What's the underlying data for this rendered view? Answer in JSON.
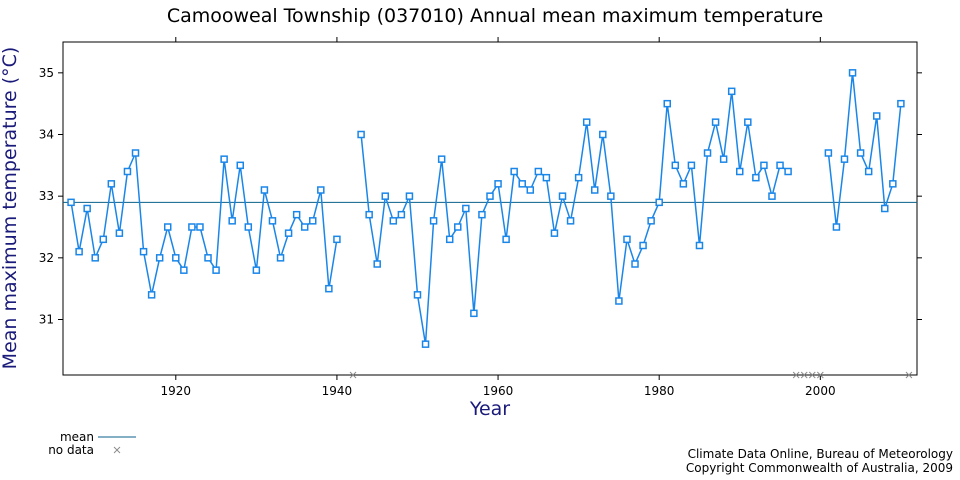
{
  "chart_data": {
    "type": "line",
    "title": "Camooweal Township (037010) Annual mean maximum temperature",
    "xlabel": "Year",
    "ylabel": "Mean maximum temperature (°C)",
    "xlim": [
      1906,
      2009
    ],
    "ylim": [
      30.1,
      35.5
    ],
    "x_ticks": [
      1920,
      1940,
      1960,
      1980,
      2000
    ],
    "y_ticks": [
      31,
      32,
      33,
      34,
      35
    ],
    "grid": false,
    "mean": 32.9,
    "series": [
      {
        "values": [
          [
            1907,
            32.9
          ],
          [
            1908,
            32.1
          ],
          [
            1909,
            32.8
          ],
          [
            1910,
            32.0
          ],
          [
            1911,
            32.3
          ],
          [
            1912,
            33.2
          ],
          [
            1913,
            32.4
          ],
          [
            1914,
            33.4
          ],
          [
            1915,
            33.7
          ],
          [
            1916,
            32.1
          ],
          [
            1917,
            31.4
          ],
          [
            1918,
            32.0
          ],
          [
            1919,
            32.5
          ],
          [
            1920,
            32.0
          ],
          [
            1921,
            31.8
          ],
          [
            1922,
            32.5
          ],
          [
            1923,
            32.5
          ],
          [
            1924,
            32.0
          ],
          [
            1925,
            31.8
          ],
          [
            1926,
            33.6
          ],
          [
            1927,
            32.6
          ],
          [
            1928,
            33.5
          ],
          [
            1929,
            32.5
          ],
          [
            1930,
            31.8
          ],
          [
            1931,
            33.1
          ],
          [
            1932,
            32.6
          ],
          [
            1933,
            32.0
          ],
          [
            1934,
            32.4
          ],
          [
            1935,
            32.7
          ],
          [
            1936,
            32.5
          ],
          [
            1937,
            32.6
          ],
          [
            1938,
            33.1
          ],
          [
            1939,
            31.5
          ],
          [
            1940,
            32.3
          ],
          [
            null,
            null
          ],
          [
            1943,
            34.0
          ],
          [
            1944,
            32.7
          ],
          [
            1945,
            31.9
          ],
          [
            1946,
            33.0
          ],
          [
            1947,
            32.6
          ],
          [
            1948,
            32.7
          ],
          [
            1949,
            33.0
          ],
          [
            1950,
            31.4
          ],
          [
            1951,
            30.6
          ],
          [
            1952,
            32.6
          ],
          [
            1953,
            33.6
          ],
          [
            1954,
            32.3
          ],
          [
            1955,
            32.5
          ],
          [
            1956,
            32.8
          ],
          [
            1957,
            31.1
          ],
          [
            1958,
            32.7
          ],
          [
            1959,
            33.0
          ],
          [
            1960,
            33.2
          ],
          [
            1961,
            32.3
          ],
          [
            1962,
            33.4
          ],
          [
            1963,
            33.2
          ],
          [
            1964,
            33.1
          ],
          [
            1965,
            33.4
          ],
          [
            1966,
            33.3
          ],
          [
            1967,
            32.4
          ],
          [
            1968,
            33.0
          ],
          [
            1969,
            32.6
          ],
          [
            1970,
            33.3
          ],
          [
            1971,
            34.2
          ],
          [
            1972,
            33.1
          ],
          [
            1973,
            34.0
          ],
          [
            1974,
            33.0
          ],
          [
            1975,
            31.3
          ],
          [
            1976,
            32.3
          ],
          [
            1977,
            31.9
          ],
          [
            1978,
            32.2
          ],
          [
            1979,
            32.6
          ],
          [
            1980,
            32.9
          ],
          [
            1981,
            34.5
          ],
          [
            1982,
            33.5
          ],
          [
            1983,
            33.2
          ],
          [
            1984,
            33.5
          ],
          [
            1985,
            32.2
          ],
          [
            1986,
            33.7
          ],
          [
            1987,
            34.2
          ],
          [
            1988,
            33.6
          ],
          [
            1989,
            34.7
          ],
          [
            1990,
            33.4
          ],
          [
            1991,
            34.2
          ],
          [
            1992,
            33.3
          ],
          [
            1993,
            33.5
          ],
          [
            1994,
            33.0
          ],
          [
            1995,
            33.5
          ],
          [
            1996,
            33.4
          ],
          [
            null,
            null
          ],
          [
            2001,
            33.7
          ],
          [
            2002,
            32.5
          ],
          [
            2003,
            33.6
          ],
          [
            2004,
            35.0
          ],
          [
            2005,
            33.7
          ],
          [
            2006,
            33.4
          ],
          [
            2007,
            34.3
          ],
          [
            2008,
            32.8
          ],
          [
            2009,
            33.2
          ],
          [
            2010,
            34.5
          ]
        ]
      }
    ],
    "no_data_years": [
      1942,
      1997,
      1998,
      1999,
      2000,
      2011
    ],
    "colors": {
      "series": "#1a86e8",
      "mean": "#0a5f8a",
      "no_data": "#8c8c8c",
      "axis_title": "#1a1a7a"
    },
    "legend": {
      "position": "bottom-left",
      "mean_label": "mean",
      "no_data_label": "no data"
    },
    "footer": {
      "line1": "Climate Data Online, Bureau of Meteorology",
      "line2": "Copyright Commonwealth of Australia, 2009"
    }
  }
}
